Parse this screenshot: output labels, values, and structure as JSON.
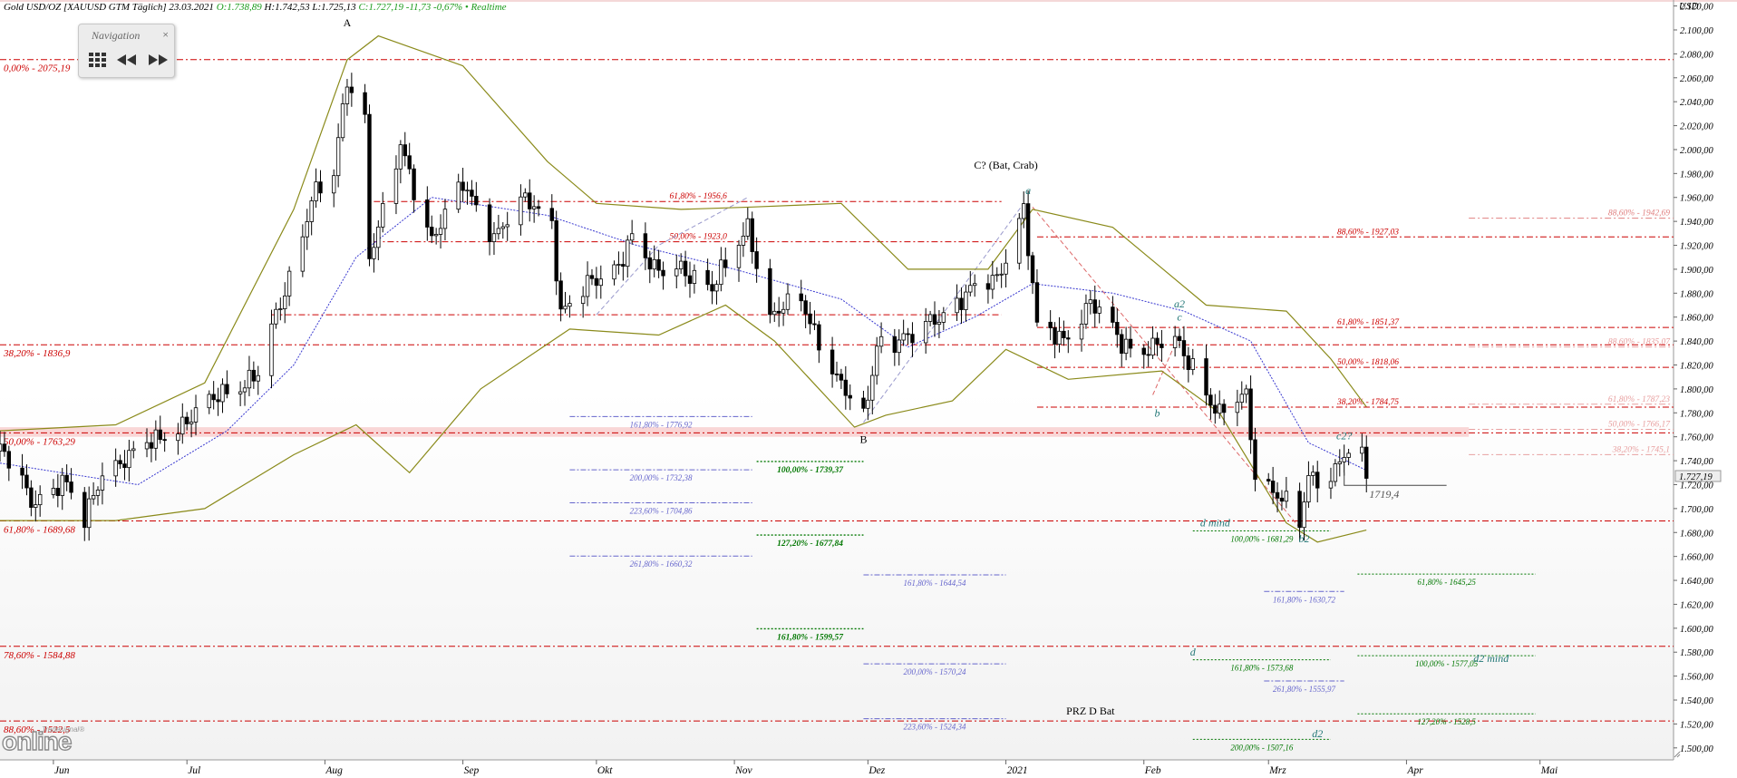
{
  "header": {
    "instrument": "Gold USD/OZ [XAUUSD GTM Täglich] 23.03.2021",
    "open": "O:1.738,89",
    "high": "H:1.742,53",
    "low": "L:1.725,13",
    "close": "C:1.727,19 -11,73 -0,67% • Realtime"
  },
  "navigation": {
    "title": "Navigation",
    "close": "×"
  },
  "logo": {
    "brand": "online",
    "sub": "Tradesignal®"
  },
  "chart_data": {
    "type": "candlestick",
    "unit_label": "USD",
    "ylim": [
      1490,
      2125
    ],
    "y_ticks": [
      {
        "v": 2120,
        "label": "2.120,00"
      },
      {
        "v": 2100,
        "label": "2.100,00"
      },
      {
        "v": 2080,
        "label": "2.080,00"
      },
      {
        "v": 2060,
        "label": "2.060,00"
      },
      {
        "v": 2040,
        "label": "2.040,00"
      },
      {
        "v": 2020,
        "label": "2.020,00"
      },
      {
        "v": 2000,
        "label": "2.000,00"
      },
      {
        "v": 1980,
        "label": "1.980,00"
      },
      {
        "v": 1960,
        "label": "1.960,00"
      },
      {
        "v": 1940,
        "label": "1.940,00"
      },
      {
        "v": 1920,
        "label": "1.920,00"
      },
      {
        "v": 1900,
        "label": "1.900,00"
      },
      {
        "v": 1880,
        "label": "1.880,00"
      },
      {
        "v": 1860,
        "label": "1.860,00"
      },
      {
        "v": 1840,
        "label": "1.840,00"
      },
      {
        "v": 1820,
        "label": "1.820,00"
      },
      {
        "v": 1800,
        "label": "1.800,00"
      },
      {
        "v": 1780,
        "label": "1.780,00"
      },
      {
        "v": 1760,
        "label": "1.760,00"
      },
      {
        "v": 1740,
        "label": "1.740,00"
      },
      {
        "v": 1720,
        "label": "1.720,00"
      },
      {
        "v": 1700,
        "label": "1.700,00"
      },
      {
        "v": 1680,
        "label": "1.680,00"
      },
      {
        "v": 1660,
        "label": "1.660,00"
      },
      {
        "v": 1640,
        "label": "1.640,00"
      },
      {
        "v": 1620,
        "label": "1.620,00"
      },
      {
        "v": 1600,
        "label": "1.600,00"
      },
      {
        "v": 1580,
        "label": "1.580,00"
      },
      {
        "v": 1560,
        "label": "1.560,00"
      },
      {
        "v": 1540,
        "label": "1.540,00"
      },
      {
        "v": 1520,
        "label": "1.520,00"
      },
      {
        "v": 1500,
        "label": "1.500,00"
      }
    ],
    "last_price": {
      "v": 1727.19,
      "label": "1.727,19"
    },
    "x_axis": {
      "start": "2020-05-20",
      "end": "2021-05-31",
      "labels": [
        {
          "date": "2020-06-01",
          "label": "Jun"
        },
        {
          "date": "2020-07-01",
          "label": "Jul"
        },
        {
          "date": "2020-08-01",
          "label": "Aug"
        },
        {
          "date": "2020-09-01",
          "label": "Sep"
        },
        {
          "date": "2020-10-01",
          "label": "Okt"
        },
        {
          "date": "2020-11-01",
          "label": "Nov"
        },
        {
          "date": "2020-12-01",
          "label": "Dez"
        },
        {
          "date": "2021-01-01",
          "label": "2021"
        },
        {
          "date": "2021-02-01",
          "label": "Feb"
        },
        {
          "date": "2021-03-01",
          "label": "Mrz"
        },
        {
          "date": "2021-04-01",
          "label": "Apr"
        },
        {
          "date": "2021-05-01",
          "label": "Mai"
        }
      ]
    },
    "price_path": [
      [
        "2020-05-20",
        1748
      ],
      [
        "2020-05-27",
        1708
      ],
      [
        "2020-06-03",
        1722
      ],
      [
        "2020-06-08",
        1688
      ],
      [
        "2020-06-12",
        1735
      ],
      [
        "2020-06-19",
        1742
      ],
      [
        "2020-06-26",
        1765
      ],
      [
        "2020-07-03",
        1776
      ],
      [
        "2020-07-10",
        1802
      ],
      [
        "2020-07-17",
        1810
      ],
      [
        "2020-07-24",
        1895
      ],
      [
        "2020-07-29",
        1960
      ],
      [
        "2020-08-03",
        1975
      ],
      [
        "2020-08-06",
        2060
      ],
      [
        "2020-08-10",
        2028
      ],
      [
        "2020-08-11",
        1915
      ],
      [
        "2020-08-14",
        1944
      ],
      [
        "2020-08-18",
        2000
      ],
      [
        "2020-08-25",
        1928
      ],
      [
        "2020-09-01",
        1968
      ],
      [
        "2020-09-08",
        1931
      ],
      [
        "2020-09-15",
        1955
      ],
      [
        "2020-09-21",
        1942
      ],
      [
        "2020-09-23",
        1866
      ],
      [
        "2020-09-28",
        1880
      ],
      [
        "2020-10-05",
        1902
      ],
      [
        "2020-10-09",
        1928
      ],
      [
        "2020-10-14",
        1895
      ],
      [
        "2020-10-20",
        1905
      ],
      [
        "2020-10-27",
        1880
      ],
      [
        "2020-11-04",
        1940
      ],
      [
        "2020-11-09",
        1856
      ],
      [
        "2020-11-16",
        1878
      ],
      [
        "2020-11-24",
        1805
      ],
      [
        "2020-11-30",
        1776
      ],
      [
        "2020-12-03",
        1840
      ],
      [
        "2020-12-10",
        1838
      ],
      [
        "2020-12-16",
        1862
      ],
      [
        "2020-12-22",
        1873
      ],
      [
        "2020-12-30",
        1895
      ],
      [
        "2021-01-05",
        1950
      ],
      [
        "2021-01-08",
        1848
      ],
      [
        "2021-01-14",
        1845
      ],
      [
        "2021-01-20",
        1870
      ],
      [
        "2021-01-27",
        1840
      ],
      [
        "2021-02-03",
        1833
      ],
      [
        "2021-02-08",
        1838
      ],
      [
        "2021-02-12",
        1823
      ],
      [
        "2021-02-18",
        1775
      ],
      [
        "2021-02-24",
        1795
      ],
      [
        "2021-02-26",
        1734
      ],
      [
        "2021-03-03",
        1712
      ],
      [
        "2021-03-08",
        1684
      ],
      [
        "2021-03-10",
        1726
      ],
      [
        "2021-03-15",
        1730
      ],
      [
        "2021-03-18",
        1745
      ],
      [
        "2021-03-22",
        1738
      ],
      [
        "2021-03-23",
        1727
      ]
    ],
    "bollinger": {
      "upper": [
        [
          "2020-05-20",
          1765
        ],
        [
          "2020-06-15",
          1770
        ],
        [
          "2020-07-05",
          1805
        ],
        [
          "2020-07-25",
          1950
        ],
        [
          "2020-08-06",
          2075
        ],
        [
          "2020-08-13",
          2095
        ],
        [
          "2020-09-01",
          2070
        ],
        [
          "2020-09-20",
          1990
        ],
        [
          "2020-10-01",
          1955
        ],
        [
          "2020-10-20",
          1950
        ],
        [
          "2020-11-05",
          1952
        ],
        [
          "2020-11-25",
          1955
        ],
        [
          "2020-12-10",
          1900
        ],
        [
          "2020-12-28",
          1900
        ],
        [
          "2021-01-07",
          1950
        ],
        [
          "2021-01-25",
          1935
        ],
        [
          "2021-02-15",
          1870
        ],
        [
          "2021-03-05",
          1865
        ],
        [
          "2021-03-15",
          1825
        ],
        [
          "2021-03-23",
          1785
        ]
      ],
      "lower": [
        [
          "2020-05-20",
          1690
        ],
        [
          "2020-06-15",
          1690
        ],
        [
          "2020-07-05",
          1700
        ],
        [
          "2020-07-25",
          1745
        ],
        [
          "2020-08-08",
          1770
        ],
        [
          "2020-08-20",
          1730
        ],
        [
          "2020-09-05",
          1800
        ],
        [
          "2020-09-25",
          1850
        ],
        [
          "2020-10-15",
          1845
        ],
        [
          "2020-10-30",
          1870
        ],
        [
          "2020-11-10",
          1840
        ],
        [
          "2020-11-28",
          1768
        ],
        [
          "2020-12-05",
          1778
        ],
        [
          "2020-12-20",
          1790
        ],
        [
          "2021-01-01",
          1833
        ],
        [
          "2021-01-15",
          1808
        ],
        [
          "2021-02-05",
          1815
        ],
        [
          "2021-02-18",
          1780
        ],
        [
          "2021-03-05",
          1688
        ],
        [
          "2021-03-12",
          1672
        ],
        [
          "2021-03-23",
          1682
        ]
      ]
    },
    "moving_average": [
      [
        "2020-05-20",
        1738
      ],
      [
        "2020-06-20",
        1720
      ],
      [
        "2020-07-10",
        1765
      ],
      [
        "2020-07-25",
        1820
      ],
      [
        "2020-08-08",
        1910
      ],
      [
        "2020-08-25",
        1960
      ],
      [
        "2020-09-20",
        1945
      ],
      [
        "2020-10-10",
        1920
      ],
      [
        "2020-11-01",
        1900
      ],
      [
        "2020-11-25",
        1875
      ],
      [
        "2020-12-10",
        1835
      ],
      [
        "2020-12-25",
        1860
      ],
      [
        "2021-01-07",
        1888
      ],
      [
        "2021-01-25",
        1880
      ],
      [
        "2021-02-10",
        1865
      ],
      [
        "2021-02-25",
        1840
      ],
      [
        "2021-03-10",
        1755
      ],
      [
        "2021-03-23",
        1732
      ]
    ],
    "support_zone": [
      1760,
      1768
    ],
    "fib_levels": [
      {
        "v": 2075.19,
        "label": "0,00% - 2075,19",
        "color": "#cc0000",
        "x1": "2020-05-20",
        "x2": "2021-05-31",
        "text_at": "left"
      },
      {
        "v": 1836.9,
        "label": "38,20% - 1836,9",
        "color": "#cc0000",
        "x1": "2020-05-20",
        "x2": "2021-05-31",
        "text_at": "left"
      },
      {
        "v": 1763.29,
        "label": "50,00% - 1763,29",
        "color": "#cc0000",
        "x1": "2020-05-20",
        "x2": "2021-05-31",
        "text_at": "left"
      },
      {
        "v": 1689.68,
        "label": "61,80% - 1689,68",
        "color": "#cc0000",
        "x1": "2020-05-20",
        "x2": "2021-05-31",
        "text_at": "left"
      },
      {
        "v": 1584.88,
        "label": "78,60% - 1584,88",
        "color": "#cc0000",
        "x1": "2020-05-20",
        "x2": "2021-05-31",
        "text_at": "left"
      },
      {
        "v": 1522.5,
        "label": "88,60% - 1522,5",
        "color": "#cc0000",
        "x1": "2020-05-20",
        "x2": "2021-05-31",
        "text_at": "left"
      },
      {
        "v": 1956.6,
        "label": "61,80% - 1956,6",
        "color": "#cc0000",
        "x1": "2020-08-12",
        "x2": "2020-12-31",
        "text_at": "mid"
      },
      {
        "v": 1923.0,
        "label": "50,00% - 1923,0",
        "color": "#cc0000",
        "x1": "2020-08-12",
        "x2": "2020-12-31",
        "text_at": "mid"
      },
      {
        "v": 1862.0,
        "label": "",
        "color": "#cc0000",
        "x1": "2020-07-20",
        "x2": "2020-12-31"
      },
      {
        "v": 1927.03,
        "label": "88,60% - 1927,03",
        "color": "#cc0000",
        "x1": "2021-01-08",
        "x2": "2021-05-31",
        "text_at": "mid"
      },
      {
        "v": 1851.37,
        "label": "61,80% - 1851,37",
        "color": "#cc0000",
        "x1": "2021-01-08",
        "x2": "2021-05-31",
        "text_at": "mid"
      },
      {
        "v": 1818.06,
        "label": "50,00% - 1818,06",
        "color": "#cc0000",
        "x1": "2021-01-08",
        "x2": "2021-05-31",
        "text_at": "mid"
      },
      {
        "v": 1784.75,
        "label": "38,20% - 1784,75",
        "color": "#cc0000",
        "x1": "2021-01-08",
        "x2": "2021-05-31",
        "text_at": "mid"
      },
      {
        "v": 1942.69,
        "label": "88,60% - 1942,69",
        "color": "#e08080",
        "x1": "2021-04-15",
        "x2": "2021-05-31",
        "text_at": "right"
      },
      {
        "v": 1835.07,
        "label": "88,60% - 1835,07",
        "color": "#e8a0a0",
        "x1": "2021-04-15",
        "x2": "2021-05-31",
        "text_at": "right"
      },
      {
        "v": 1787.23,
        "label": "61,80% - 1787,23",
        "color": "#e8a0a0",
        "x1": "2021-04-15",
        "x2": "2021-05-31",
        "text_at": "right"
      },
      {
        "v": 1766.17,
        "label": "50,00% - 1766,17",
        "color": "#e8a0a0",
        "x1": "2021-04-15",
        "x2": "2021-05-31",
        "text_at": "right"
      },
      {
        "v": 1745.1,
        "label": "38,20% - 1745,1",
        "color": "#e8a0a0",
        "x1": "2021-04-15",
        "x2": "2021-05-31",
        "text_at": "right"
      }
    ],
    "ext_levels": [
      {
        "v": 1776.92,
        "label": "161,80% - 1776,92",
        "color": "#6666cc",
        "x1": "2020-09-25",
        "x2": "2020-11-05"
      },
      {
        "v": 1732.38,
        "label": "200,00% - 1732,38",
        "color": "#6666cc",
        "x1": "2020-09-25",
        "x2": "2020-11-05"
      },
      {
        "v": 1704.86,
        "label": "223,60% - 1704,86",
        "color": "#6666cc",
        "x1": "2020-09-25",
        "x2": "2020-11-05"
      },
      {
        "v": 1660.32,
        "label": "261,80% - 1660,32",
        "color": "#6666cc",
        "x1": "2020-09-25",
        "x2": "2020-11-05"
      },
      {
        "v": 1644.54,
        "label": "161,80% - 1644,54",
        "color": "#6666cc",
        "x1": "2020-11-30",
        "x2": "2021-01-01"
      },
      {
        "v": 1570.24,
        "label": "200,00% - 1570,24",
        "color": "#6666cc",
        "x1": "2020-11-30",
        "x2": "2021-01-01"
      },
      {
        "v": 1524.34,
        "label": "223,60% - 1524,34",
        "color": "#6666cc",
        "x1": "2020-11-30",
        "x2": "2021-01-01"
      },
      {
        "v": 1630.72,
        "label": "161,80% - 1630,72",
        "color": "#6666cc",
        "x1": "2021-02-28",
        "x2": "2021-03-18"
      },
      {
        "v": 1555.97,
        "label": "261,80% - 1555,97",
        "color": "#6666cc",
        "x1": "2021-02-28",
        "x2": "2021-03-18"
      },
      {
        "v": 1739.37,
        "label": "100,00% - 1739,37",
        "color": "#007700",
        "x1": "2020-11-06",
        "x2": "2020-11-30",
        "bold": true
      },
      {
        "v": 1677.84,
        "label": "127,20% - 1677,84",
        "color": "#007700",
        "x1": "2020-11-06",
        "x2": "2020-11-30",
        "bold": true
      },
      {
        "v": 1599.57,
        "label": "161,80% - 1599,57",
        "color": "#007700",
        "x1": "2020-11-06",
        "x2": "2020-11-30",
        "bold": true
      },
      {
        "v": 1681.29,
        "label": "100,00% - 1681,29",
        "color": "#007700",
        "x1": "2021-02-12",
        "x2": "2021-03-15"
      },
      {
        "v": 1573.68,
        "label": "161,80% - 1573,68",
        "color": "#007700",
        "x1": "2021-02-12",
        "x2": "2021-03-15"
      },
      {
        "v": 1507.16,
        "label": "200,00% - 1507,16",
        "color": "#007700",
        "x1": "2021-02-12",
        "x2": "2021-03-15"
      },
      {
        "v": 1645.25,
        "label": "61,80% - 1645,25",
        "color": "#007700",
        "x1": "2021-03-21",
        "x2": "2021-04-30"
      },
      {
        "v": 1577.05,
        "label": "100,00% - 1577,05",
        "color": "#007700",
        "x1": "2021-03-21",
        "x2": "2021-04-30"
      },
      {
        "v": 1528.5,
        "label": "127,20% - 1528,5",
        "color": "#007700",
        "x1": "2021-03-21",
        "x2": "2021-04-30"
      }
    ],
    "pattern_lines": [
      {
        "color": "#9999cc",
        "points": [
          [
            "2020-10-01",
            "1862"
          ],
          [
            "2020-10-15",
            "1920"
          ],
          [
            "2020-11-04",
            "1960"
          ]
        ]
      },
      {
        "color": "#9999cc",
        "points": [
          [
            "2020-11-30",
            "1772"
          ],
          [
            "2021-01-05",
            "1955"
          ]
        ]
      },
      {
        "color": "#dd6666",
        "points": [
          [
            "2021-01-07",
            "1952"
          ],
          [
            "2021-03-08",
            "1684"
          ]
        ]
      },
      {
        "color": "#dd6666",
        "points": [
          [
            "2021-02-03",
            "1795"
          ],
          [
            "2021-02-09",
            "1846"
          ]
        ]
      }
    ],
    "wave_labels": [
      {
        "text": "A",
        "date": "2020-08-06",
        "v": 2103,
        "color": "#000000",
        "italic": false
      },
      {
        "text": "B",
        "date": "2020-11-30",
        "v": 1755,
        "color": "#000000",
        "italic": false
      },
      {
        "text": "C? (Bat, Crab)",
        "date": "2021-01-01",
        "v": 1984,
        "color": "#000000",
        "italic": false
      },
      {
        "text": "a",
        "date": "2021-01-06",
        "v": 1963,
        "color": "#227777",
        "italic": true
      },
      {
        "text": "b",
        "date": "2021-02-04",
        "v": 1777,
        "color": "#227777",
        "italic": true
      },
      {
        "text": "a2",
        "date": "2021-02-09",
        "v": 1868,
        "color": "#227777",
        "italic": true
      },
      {
        "text": "c",
        "date": "2021-02-09",
        "v": 1857,
        "color": "#227777",
        "italic": true
      },
      {
        "text": "c2?",
        "date": "2021-03-18",
        "v": 1758,
        "color": "#227777",
        "italic": true
      },
      {
        "text": "b2",
        "date": "2021-03-09",
        "v": 1672,
        "color": "#227777",
        "italic": true
      },
      {
        "text": "d mind",
        "date": "2021-02-17",
        "v": 1685,
        "color": "#227777",
        "italic": true
      },
      {
        "text": "d",
        "date": "2021-02-12",
        "v": 1577,
        "color": "#227777",
        "italic": true
      },
      {
        "text": "d2 mind",
        "date": "2021-04-20",
        "v": 1572,
        "color": "#227777",
        "italic": true
      },
      {
        "text": "d2",
        "date": "2021-03-12",
        "v": 1509,
        "color": "#227777",
        "italic": true
      },
      {
        "text": "PRZ D Bat",
        "date": "2021-01-20",
        "v": 1528,
        "color": "#000000",
        "italic": false
      },
      {
        "text": "1719,4",
        "date": "2021-03-27",
        "v": 1709,
        "color": "#555555",
        "italic": true
      }
    ],
    "grid": false,
    "legend": "none"
  }
}
